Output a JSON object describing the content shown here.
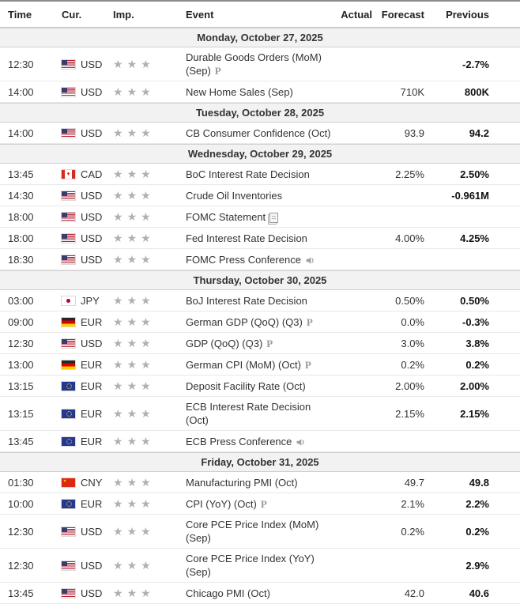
{
  "columns": [
    "Time",
    "Cur.",
    "Imp.",
    "Event",
    "Actual",
    "Forecast",
    "Previous"
  ],
  "icons": {
    "star": "★",
    "preliminary": "P"
  },
  "colors": {
    "header_border": "#8a8a8a",
    "date_row_bg": "#f2f2f2",
    "row_border": "#e8e8e8",
    "star_gray": "#b0b0b0",
    "previous_text": "#111111"
  },
  "days": [
    {
      "date": "Monday, October 27, 2025",
      "events": [
        {
          "time": "12:30",
          "country": "us",
          "currency": "USD",
          "stars": 3,
          "event": "Durable Goods Orders (MoM) (Sep)",
          "suffix": "preliminary",
          "actual": "",
          "forecast": "",
          "previous": "-2.7%"
        },
        {
          "time": "14:00",
          "country": "us",
          "currency": "USD",
          "stars": 3,
          "event": "New Home Sales (Sep)",
          "suffix": null,
          "actual": "",
          "forecast": "710K",
          "previous": "800K"
        }
      ]
    },
    {
      "date": "Tuesday, October 28, 2025",
      "events": [
        {
          "time": "14:00",
          "country": "us",
          "currency": "USD",
          "stars": 3,
          "event": "CB Consumer Confidence (Oct)",
          "suffix": null,
          "actual": "",
          "forecast": "93.9",
          "previous": "94.2"
        }
      ]
    },
    {
      "date": "Wednesday, October 29, 2025",
      "events": [
        {
          "time": "13:45",
          "country": "ca",
          "currency": "CAD",
          "stars": 3,
          "event": "BoC Interest Rate Decision",
          "suffix": null,
          "actual": "",
          "forecast": "2.25%",
          "previous": "2.50%"
        },
        {
          "time": "14:30",
          "country": "us",
          "currency": "USD",
          "stars": 3,
          "event": "Crude Oil Inventories",
          "suffix": null,
          "actual": "",
          "forecast": "",
          "previous": "-0.961M"
        },
        {
          "time": "18:00",
          "country": "us",
          "currency": "USD",
          "stars": 3,
          "event": "FOMC Statement",
          "suffix": "report",
          "actual": "",
          "forecast": "",
          "previous": ""
        },
        {
          "time": "18:00",
          "country": "us",
          "currency": "USD",
          "stars": 3,
          "event": "Fed Interest Rate Decision",
          "suffix": null,
          "actual": "",
          "forecast": "4.00%",
          "previous": "4.25%"
        },
        {
          "time": "18:30",
          "country": "us",
          "currency": "USD",
          "stars": 3,
          "event": "FOMC Press Conference",
          "suffix": "speech",
          "actual": "",
          "forecast": "",
          "previous": ""
        }
      ]
    },
    {
      "date": "Thursday, October 30, 2025",
      "events": [
        {
          "time": "03:00",
          "country": "jp",
          "currency": "JPY",
          "stars": 3,
          "event": "BoJ Interest Rate Decision",
          "suffix": null,
          "actual": "",
          "forecast": "0.50%",
          "previous": "0.50%"
        },
        {
          "time": "09:00",
          "country": "de",
          "currency": "EUR",
          "stars": 3,
          "event": "German GDP (QoQ) (Q3)",
          "suffix": "preliminary",
          "actual": "",
          "forecast": "0.0%",
          "previous": "-0.3%"
        },
        {
          "time": "12:30",
          "country": "us",
          "currency": "USD",
          "stars": 3,
          "event": "GDP (QoQ) (Q3)",
          "suffix": "preliminary",
          "actual": "",
          "forecast": "3.0%",
          "previous": "3.8%"
        },
        {
          "time": "13:00",
          "country": "de",
          "currency": "EUR",
          "stars": 3,
          "event": "German CPI (MoM) (Oct)",
          "suffix": "preliminary",
          "actual": "",
          "forecast": "0.2%",
          "previous": "0.2%"
        },
        {
          "time": "13:15",
          "country": "eu",
          "currency": "EUR",
          "stars": 3,
          "event": "Deposit Facility Rate (Oct)",
          "suffix": null,
          "actual": "",
          "forecast": "2.00%",
          "previous": "2.00%"
        },
        {
          "time": "13:15",
          "country": "eu",
          "currency": "EUR",
          "stars": 3,
          "event": "ECB Interest Rate Decision (Oct)",
          "suffix": null,
          "actual": "",
          "forecast": "2.15%",
          "previous": "2.15%"
        },
        {
          "time": "13:45",
          "country": "eu",
          "currency": "EUR",
          "stars": 3,
          "event": "ECB Press Conference",
          "suffix": "speech",
          "actual": "",
          "forecast": "",
          "previous": ""
        }
      ]
    },
    {
      "date": "Friday, October 31, 2025",
      "events": [
        {
          "time": "01:30",
          "country": "cn",
          "currency": "CNY",
          "stars": 3,
          "event": "Manufacturing PMI (Oct)",
          "suffix": null,
          "actual": "",
          "forecast": "49.7",
          "previous": "49.8"
        },
        {
          "time": "10:00",
          "country": "eu",
          "currency": "EUR",
          "stars": 3,
          "event": "CPI (YoY) (Oct)",
          "suffix": "preliminary",
          "actual": "",
          "forecast": "2.1%",
          "previous": "2.2%"
        },
        {
          "time": "12:30",
          "country": "us",
          "currency": "USD",
          "stars": 3,
          "event": "Core PCE Price Index (MoM) (Sep)",
          "suffix": null,
          "actual": "",
          "forecast": "0.2%",
          "previous": "0.2%"
        },
        {
          "time": "12:30",
          "country": "us",
          "currency": "USD",
          "stars": 3,
          "event": "Core PCE Price Index (YoY) (Sep)",
          "suffix": null,
          "actual": "",
          "forecast": "",
          "previous": "2.9%"
        },
        {
          "time": "13:45",
          "country": "us",
          "currency": "USD",
          "stars": 3,
          "event": "Chicago PMI (Oct)",
          "suffix": null,
          "actual": "",
          "forecast": "42.0",
          "previous": "40.6"
        }
      ]
    }
  ]
}
